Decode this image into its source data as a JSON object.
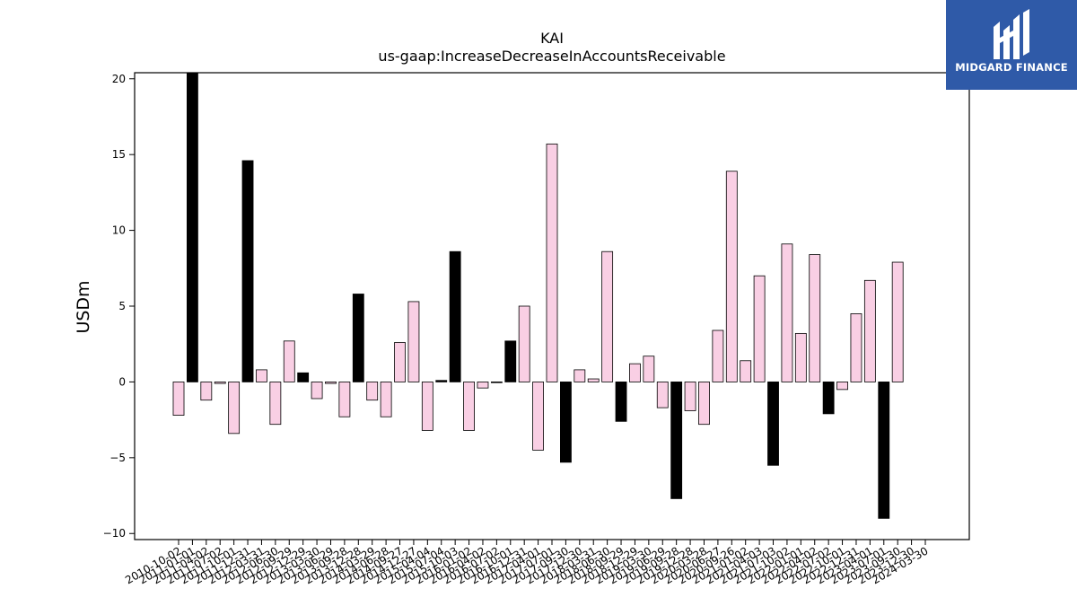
{
  "chart_data": {
    "type": "bar",
    "title": "KAI",
    "subtitle": "us-gaap:IncreaseDecreaseInAccountsReceivable",
    "xlabel": "",
    "ylabel": "USDm",
    "ylim": [
      -10.4,
      20.4
    ],
    "yticks": [
      -10,
      -5,
      0,
      5,
      10,
      15,
      20
    ],
    "ytick_labels": [
      "−10",
      "−5",
      "0",
      "5",
      "10",
      "15",
      "20"
    ],
    "grid": false,
    "highlight_rule": "fiscal Q4 bars in black, other quarters in pink",
    "colors": {
      "pink": "#f9cfe4",
      "black": "#000000",
      "edge": "#000000"
    },
    "categories": [
      "2010-10-02",
      "2011-01-01",
      "2011-04-02",
      "2011-07-02",
      "2011-10-01",
      "2011-12-31",
      "2012-03-31",
      "2012-06-30",
      "2012-09-29",
      "2012-12-29",
      "2013-03-30",
      "2013-06-29",
      "2013-09-28",
      "2013-12-28",
      "2014-03-29",
      "2014-06-28",
      "2014-09-27",
      "2014-12-27",
      "2015-04-04",
      "2015-07-04",
      "2015-10-03",
      "2016-01-02",
      "2016-04-02",
      "2016-07-02",
      "2016-10-01",
      "2016-12-31",
      "2017-04-01",
      "2017-07-01",
      "2017-09-30",
      "2017-12-30",
      "2018-03-31",
      "2018-06-30",
      "2018-09-29",
      "2018-12-29",
      "2019-03-30",
      "2019-06-29",
      "2019-09-28",
      "2019-12-28",
      "2020-03-28",
      "2020-06-27",
      "2020-09-26",
      "2021-01-02",
      "2021-04-03",
      "2021-07-03",
      "2021-10-02",
      "2022-01-01",
      "2022-04-02",
      "2022-07-02",
      "2022-10-01",
      "2022-12-31",
      "2023-04-01",
      "2023-07-01",
      "2023-09-30",
      "2023-12-30",
      "2024-03-30"
    ],
    "values": [
      -2.2,
      20.4,
      -1.2,
      -0.1,
      -3.4,
      14.6,
      0.8,
      -2.8,
      2.7,
      0.6,
      -1.1,
      -0.1,
      -2.3,
      5.8,
      -1.2,
      -2.3,
      2.6,
      5.3,
      -3.2,
      0.1,
      8.6,
      -3.2,
      -0.4,
      0.0,
      2.7,
      5.0,
      -4.5,
      15.7,
      -5.3,
      0.8,
      0.2,
      8.6,
      -2.6,
      1.2,
      1.7,
      -1.7,
      -7.7,
      -1.9,
      -2.8,
      3.4,
      13.9,
      1.4,
      7.0,
      -5.5,
      9.1,
      3.2,
      8.4,
      -2.1,
      -0.5,
      4.5,
      6.7,
      -9.0,
      7.9,
      null,
      null
    ],
    "bar_colors": [
      "pink",
      "black",
      "pink",
      "pink",
      "pink",
      "black",
      "pink",
      "pink",
      "pink",
      "black",
      "pink",
      "pink",
      "pink",
      "black",
      "pink",
      "pink",
      "pink",
      "pink",
      "pink",
      "black",
      "black",
      "pink",
      "pink",
      "pink",
      "black",
      "pink",
      "pink",
      "pink",
      "black",
      "pink",
      "pink",
      "pink",
      "black",
      "pink",
      "pink",
      "pink",
      "black",
      "pink",
      "pink",
      "pink",
      "pink",
      "pink",
      "pink",
      "black",
      "pink",
      "pink",
      "pink",
      "black",
      "pink",
      "pink",
      "pink",
      "black",
      "pink",
      "pink",
      "pink"
    ]
  },
  "logo": {
    "text": "MIDGARD FINANCE",
    "icon": "midgard-logo-icon"
  }
}
